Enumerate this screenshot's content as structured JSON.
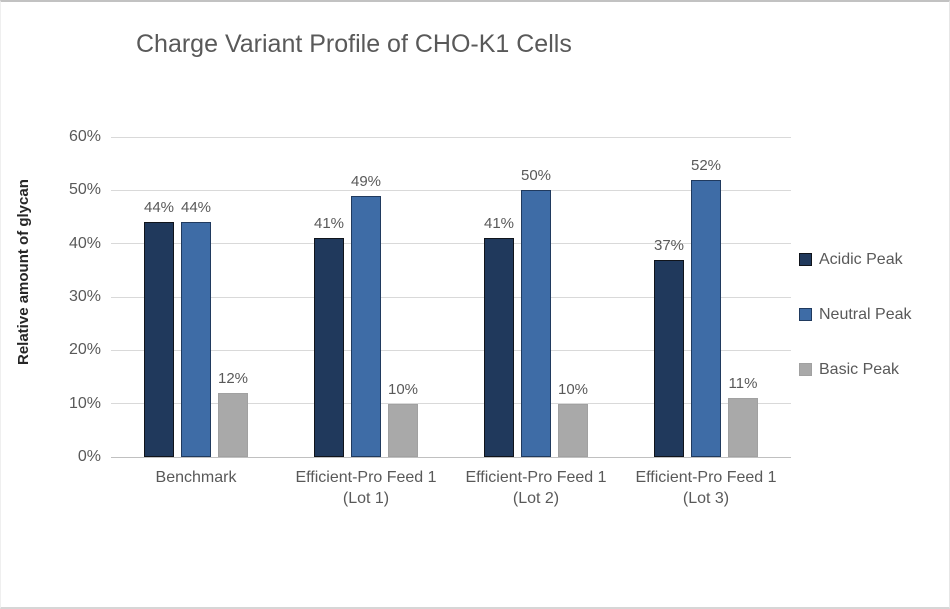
{
  "page": {
    "title": "Charge Variant Profile of CHO-K1 Cells"
  },
  "chart_data": {
    "type": "bar",
    "title": "Charge Variant Profile of CHO-K1 Cells",
    "ylabel": "Relative amount of glycan",
    "xlabel": "",
    "ylim": [
      0,
      60
    ],
    "yticks": [
      "0%",
      "10%",
      "20%",
      "30%",
      "40%",
      "50%",
      "60%"
    ],
    "grid": true,
    "legend_position": "right",
    "categories": [
      "Benchmark",
      "Efficient-Pro Feed 1 (Lot 1)",
      "Efficient-Pro Feed 1 (Lot 2)",
      "Efficient-Pro Feed 1 (Lot 3)"
    ],
    "category_label_lines": [
      [
        "Benchmark"
      ],
      [
        "Efficient-Pro Feed 1",
        "(Lot 1)"
      ],
      [
        "Efficient-Pro Feed 1",
        "(Lot 2)"
      ],
      [
        "Efficient-Pro Feed 1",
        "(Lot 3)"
      ]
    ],
    "series": [
      {
        "name": "Acidic Peak",
        "values": [
          44,
          41,
          41,
          37
        ],
        "data_labels": [
          "44%",
          "41%",
          "41%",
          "37%"
        ],
        "fill": "#20395C",
        "border": "#10141B"
      },
      {
        "name": "Neutral Peak",
        "values": [
          44,
          49,
          50,
          52
        ],
        "data_labels": [
          "44%",
          "49%",
          "50%",
          "52%"
        ],
        "fill": "#3E6CA6",
        "border": "#203A5E"
      },
      {
        "name": "Basic Peak",
        "values": [
          12,
          10,
          10,
          11
        ],
        "data_labels": [
          "12%",
          "10%",
          "10%",
          "11%"
        ],
        "fill": "#A9A9A9",
        "border": "#A1A1A1"
      }
    ]
  },
  "style": {
    "title_color": "#595959",
    "tick_label_color": "#595959",
    "data_label_color": "#595959",
    "axis_title_color": "#262626",
    "gridline_color": "#D9D9D9",
    "axis_line_color": "#C0C0C0",
    "background": "#FFFFFF"
  }
}
